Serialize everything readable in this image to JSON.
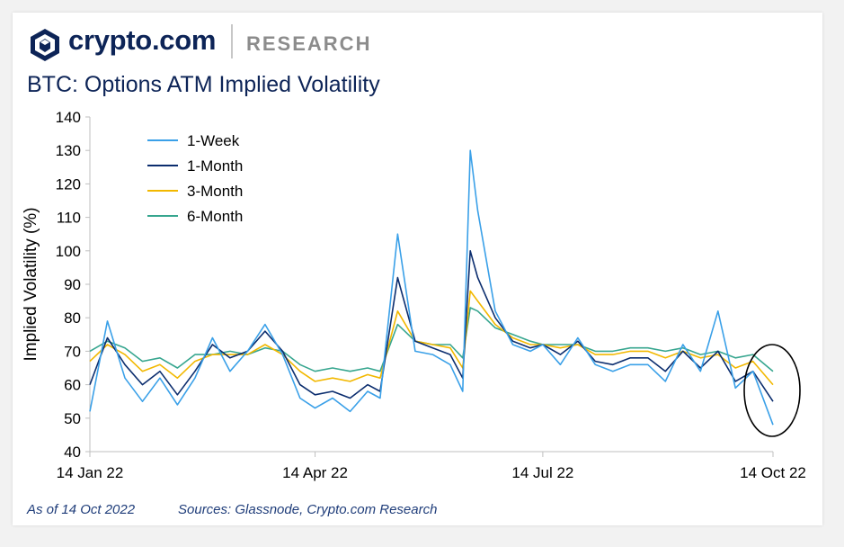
{
  "brand": {
    "name": "crypto.com",
    "sub": "RESEARCH"
  },
  "colors": {
    "navy": "#0d2457",
    "week": "#3aa0e8",
    "month": "#0b2d6e",
    "three_month": "#f2b800",
    "six_month": "#37a68f"
  },
  "footer": {
    "as_of": "As of 14 Oct 2022",
    "sources": "Sources: Glassnode, Crypto.com Research"
  },
  "chart_data": {
    "type": "line",
    "title": "BTC: Options ATM Implied Volatility",
    "ylabel": "Implied Volatility (%)",
    "xlabel": "",
    "ylim": [
      40,
      140
    ],
    "yticks": [
      40,
      50,
      60,
      70,
      80,
      90,
      100,
      110,
      120,
      130,
      140
    ],
    "xticks": [
      "14 Jan 22",
      "14 Apr 22",
      "14 Jul 22",
      "14 Oct 22"
    ],
    "legend_position": "top-left",
    "grid": false,
    "x": [
      "2022-01-14",
      "2022-01-21",
      "2022-01-28",
      "2022-02-04",
      "2022-02-11",
      "2022-02-18",
      "2022-02-25",
      "2022-03-04",
      "2022-03-11",
      "2022-03-18",
      "2022-03-25",
      "2022-04-01",
      "2022-04-08",
      "2022-04-14",
      "2022-04-21",
      "2022-04-28",
      "2022-05-05",
      "2022-05-10",
      "2022-05-17",
      "2022-05-24",
      "2022-05-31",
      "2022-06-07",
      "2022-06-12",
      "2022-06-15",
      "2022-06-18",
      "2022-06-25",
      "2022-07-02",
      "2022-07-09",
      "2022-07-14",
      "2022-07-21",
      "2022-07-28",
      "2022-08-04",
      "2022-08-11",
      "2022-08-18",
      "2022-08-25",
      "2022-09-01",
      "2022-09-08",
      "2022-09-15",
      "2022-09-22",
      "2022-09-29",
      "2022-10-06",
      "2022-10-14"
    ],
    "series": [
      {
        "name": "1-Week",
        "color": "#3aa0e8",
        "values": [
          52,
          79,
          62,
          55,
          62,
          54,
          62,
          74,
          64,
          70,
          78,
          69,
          56,
          53,
          56,
          52,
          58,
          56,
          105,
          70,
          69,
          66,
          58,
          130,
          112,
          82,
          72,
          70,
          72,
          66,
          74,
          66,
          64,
          66,
          66,
          61,
          72,
          64,
          82,
          59,
          64,
          48
        ]
      },
      {
        "name": "1-Month",
        "color": "#0b2d6e",
        "values": [
          60,
          74,
          66,
          60,
          64,
          57,
          64,
          72,
          68,
          70,
          76,
          70,
          60,
          57,
          58,
          56,
          60,
          58,
          92,
          73,
          71,
          69,
          62,
          100,
          92,
          80,
          73,
          71,
          72,
          69,
          73,
          67,
          66,
          68,
          68,
          64,
          70,
          65,
          70,
          61,
          64,
          55
        ]
      },
      {
        "name": "3-Month",
        "color": "#f2b800",
        "values": [
          67,
          72,
          69,
          64,
          66,
          62,
          67,
          69,
          69,
          69,
          72,
          69,
          64,
          61,
          62,
          61,
          63,
          62,
          82,
          73,
          72,
          71,
          65,
          88,
          85,
          78,
          74,
          72,
          72,
          71,
          72,
          69,
          69,
          70,
          70,
          68,
          70,
          68,
          69,
          65,
          67,
          60
        ]
      },
      {
        "name": "6-Month",
        "color": "#37a68f",
        "values": [
          70,
          73,
          71,
          67,
          68,
          65,
          69,
          69,
          70,
          69,
          71,
          70,
          66,
          64,
          65,
          64,
          65,
          64,
          78,
          73,
          72,
          72,
          68,
          83,
          82,
          77,
          75,
          73,
          72,
          72,
          72,
          70,
          70,
          71,
          71,
          70,
          71,
          69,
          70,
          68,
          69,
          64
        ]
      }
    ]
  }
}
